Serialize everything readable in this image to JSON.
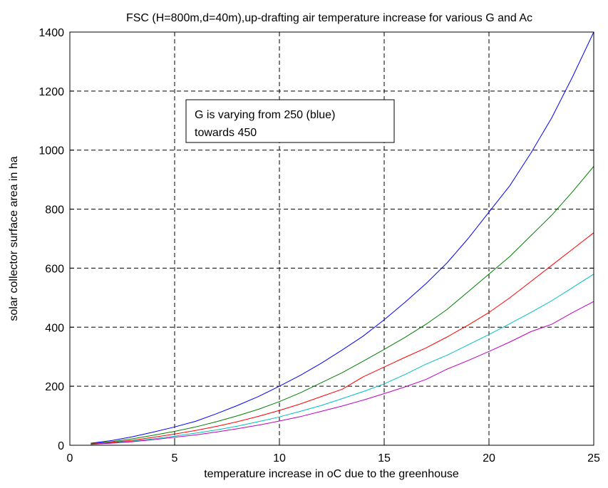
{
  "chart_data": {
    "type": "line",
    "title": "FSC (H=800m,d=40m),up-drafting air temperature increase for various G and Ac",
    "xlabel": "temperature increase in oC due to the greenhouse",
    "ylabel": "solar collector surface area in ha",
    "xlim": [
      0,
      25
    ],
    "ylim": [
      0,
      1400
    ],
    "xticks": [
      0,
      5,
      10,
      15,
      20,
      25
    ],
    "yticks": [
      0,
      200,
      400,
      600,
      800,
      1000,
      1200,
      1400
    ],
    "grid": true,
    "annotation": {
      "lines": [
        "G is varying from 250 (blue)",
        "towards 450"
      ]
    },
    "x": [
      1,
      2,
      3,
      4,
      5,
      6,
      7,
      8,
      9,
      10,
      11,
      12,
      13,
      14,
      15,
      16,
      17,
      18,
      19,
      20,
      21,
      22,
      23,
      24,
      25
    ],
    "series": [
      {
        "color": "#0000ff",
        "values": [
          7,
          16,
          29,
          45,
          62,
          81,
          107,
          135,
          165,
          200,
          237,
          278,
          323,
          370,
          425,
          485,
          548,
          618,
          700,
          790,
          880,
          990,
          1110,
          1250,
          1400
        ]
      },
      {
        "color": "#008000",
        "values": [
          5,
          12,
          22,
          34,
          47,
          62,
          80,
          100,
          122,
          148,
          178,
          212,
          246,
          285,
          325,
          366,
          410,
          460,
          520,
          580,
          640,
          710,
          780,
          860,
          945
        ]
      },
      {
        "color": "#ff0000",
        "values": [
          4,
          10,
          17,
          27,
          38,
          50,
          64,
          80,
          98,
          118,
          140,
          165,
          190,
          232,
          265,
          298,
          330,
          367,
          407,
          450,
          500,
          555,
          610,
          665,
          720
        ]
      },
      {
        "color": "#00bfbf",
        "values": [
          3,
          8,
          14,
          22,
          31,
          41,
          52,
          65,
          80,
          96,
          115,
          135,
          158,
          182,
          208,
          240,
          275,
          305,
          340,
          375,
          412,
          450,
          490,
          535,
          580
        ]
      },
      {
        "color": "#bf00bf",
        "values": [
          3,
          7,
          12,
          19,
          27,
          35,
          45,
          56,
          68,
          82,
          97,
          115,
          133,
          153,
          175,
          198,
          223,
          258,
          287,
          318,
          350,
          385,
          410,
          450,
          487
        ]
      }
    ]
  }
}
